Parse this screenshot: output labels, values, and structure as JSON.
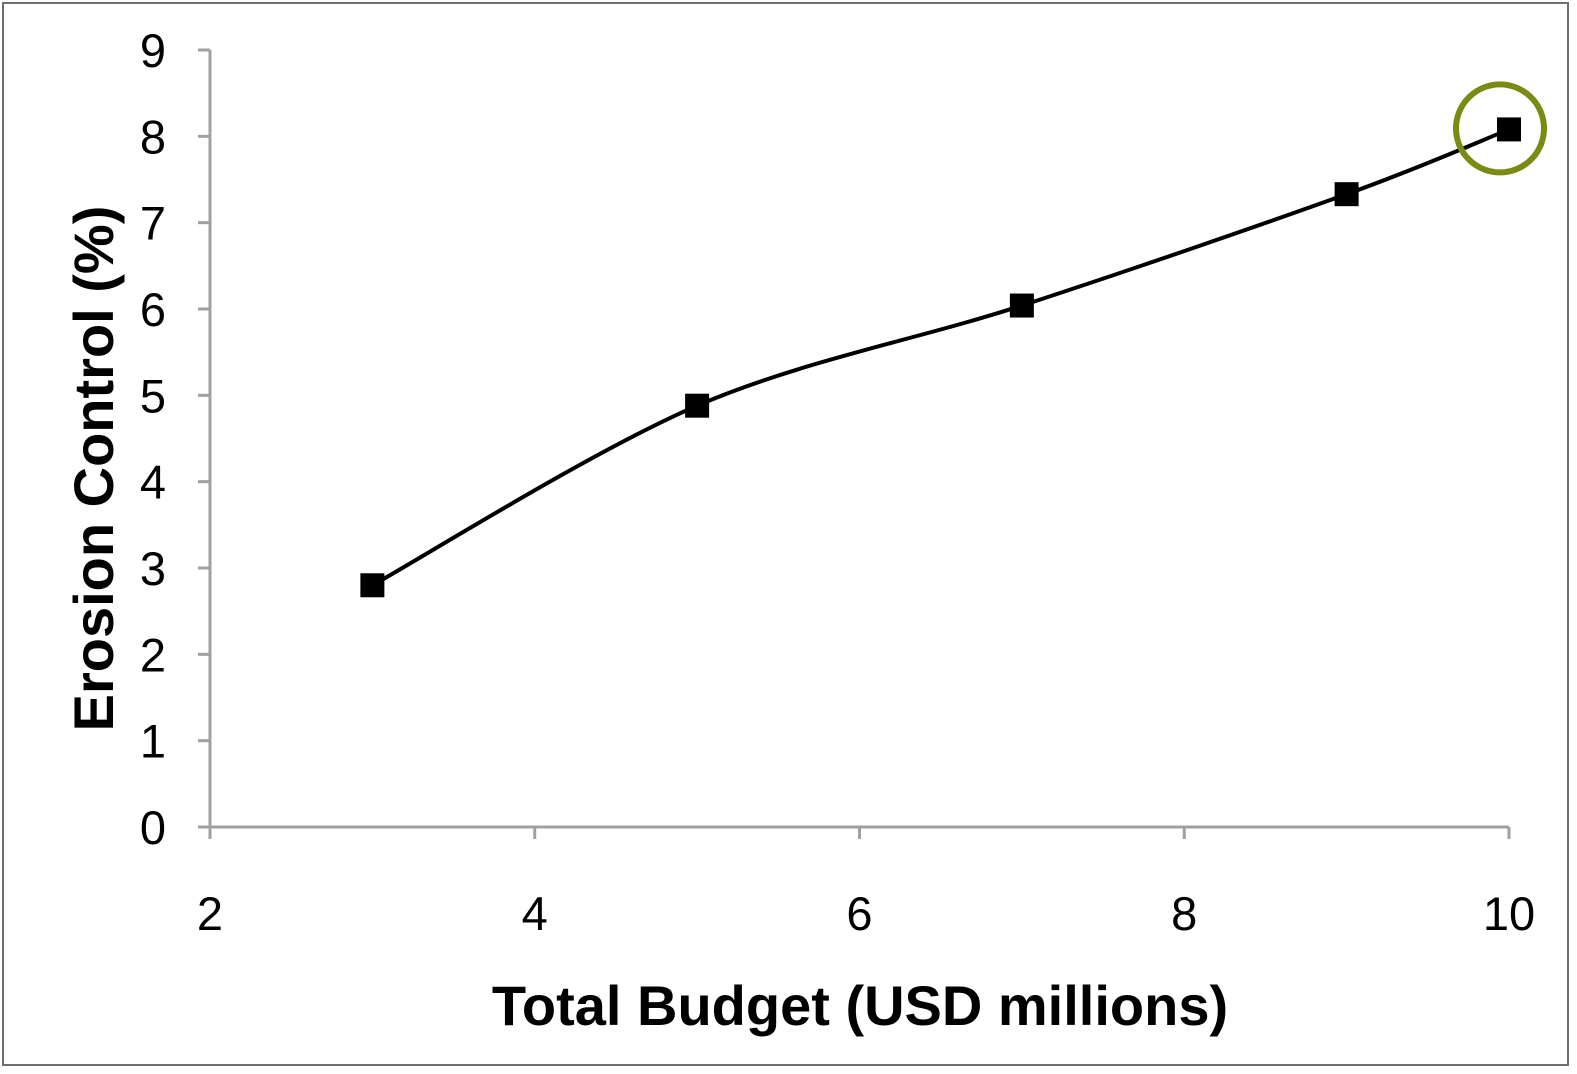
{
  "chart_data": {
    "type": "line",
    "xlabel": "Total Budget (USD millions)",
    "ylabel": "Erosion Control (%)",
    "xlim": [
      2,
      10
    ],
    "ylim": [
      0,
      9
    ],
    "xticks": [
      "2",
      "4",
      "6",
      "8",
      "10"
    ],
    "yticks": [
      "0",
      "1",
      "2",
      "3",
      "4",
      "5",
      "6",
      "7",
      "8",
      "9"
    ],
    "grid": false,
    "legend": "none",
    "smooth": true,
    "series": [
      {
        "x": [
          3,
          5,
          7,
          9,
          10
        ],
        "y": [
          2.8,
          4.88,
          6.04,
          7.33,
          8.08
        ],
        "color": "#000000",
        "marker": "square"
      }
    ],
    "highlight": {
      "x": 10,
      "y": 8.08,
      "shape": "circle",
      "color": "#7a8a12"
    },
    "axis_color": "#a0a0a0"
  }
}
